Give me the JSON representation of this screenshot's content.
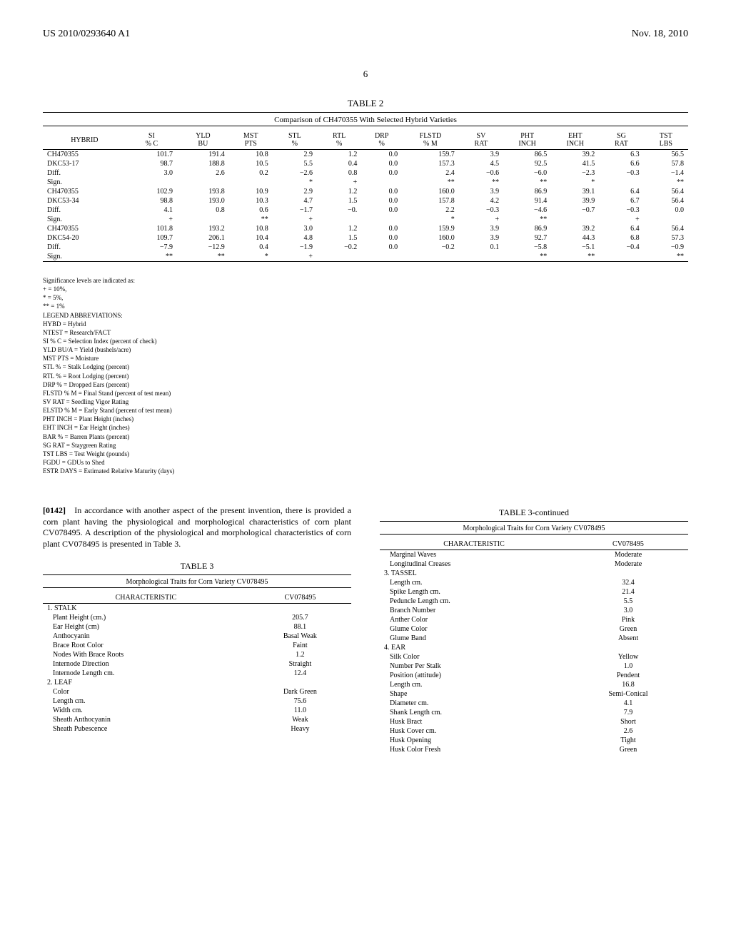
{
  "header": {
    "left": "US 2010/0293640 A1",
    "right": "Nov. 18, 2010"
  },
  "page_number": "6",
  "table2": {
    "label": "TABLE 2",
    "caption": "Comparison of CH470355 With Selected Hybrid Varieties",
    "columns": [
      "HYBRID",
      "SI\n% C",
      "YLD\nBU",
      "MST\nPTS",
      "STL\n%",
      "RTL\n%",
      "DRP\n%",
      "FLSTD\n% M",
      "SV\nRAT",
      "PHT\nINCH",
      "EHT\nINCH",
      "SG\nRAT",
      "TST\nLBS"
    ],
    "rows": [
      [
        "CH470355",
        "101.7",
        "191.4",
        "10.8",
        "2.9",
        "1.2",
        "0.0",
        "159.7",
        "3.9",
        "86.5",
        "39.2",
        "6.3",
        "56.5"
      ],
      [
        "DKC53-17",
        "98.7",
        "188.8",
        "10.5",
        "5.5",
        "0.4",
        "0.0",
        "157.3",
        "4.5",
        "92.5",
        "41.5",
        "6.6",
        "57.8"
      ],
      [
        "Diff.",
        "3.0",
        "2.6",
        "0.2",
        "−2.6",
        "0.8",
        "0.0",
        "2.4",
        "−0.6",
        "−6.0",
        "−2.3",
        "−0.3",
        "−1.4"
      ],
      [
        "Sign.",
        "",
        "",
        "",
        "*",
        "+",
        "",
        "**",
        "**",
        "**",
        "*",
        "",
        "**"
      ],
      [
        "CH470355",
        "102.9",
        "193.8",
        "10.9",
        "2.9",
        "1.2",
        "0.0",
        "160.0",
        "3.9",
        "86.9",
        "39.1",
        "6.4",
        "56.4"
      ],
      [
        "DKC53-34",
        "98.8",
        "193.0",
        "10.3",
        "4.7",
        "1.5",
        "0.0",
        "157.8",
        "4.2",
        "91.4",
        "39.9",
        "6.7",
        "56.4"
      ],
      [
        "Diff.",
        "4.1",
        "0.8",
        "0.6",
        "−1.7",
        "−0.",
        "0.0",
        "2.2",
        "−0.3",
        "−4.6",
        "−0.7",
        "−0.3",
        "0.0"
      ],
      [
        "Sign.",
        "+",
        "",
        "**",
        "+",
        "",
        "",
        "*",
        "+",
        "**",
        "",
        "+",
        ""
      ],
      [
        "CH470355",
        "101.8",
        "193.2",
        "10.8",
        "3.0",
        "1.2",
        "0.0",
        "159.9",
        "3.9",
        "86.9",
        "39.2",
        "6.4",
        "56.4"
      ],
      [
        "DKC54-20",
        "109.7",
        "206.1",
        "10.4",
        "4.8",
        "1.5",
        "0.0",
        "160.0",
        "3.9",
        "92.7",
        "44.3",
        "6.8",
        "57.3"
      ],
      [
        "Diff.",
        "−7.9",
        "−12.9",
        "0.4",
        "−1.9",
        "−0.2",
        "0.0",
        "−0.2",
        "0.1",
        "−5.8",
        "−5.1",
        "−0.4",
        "−0.9"
      ],
      [
        "Sign.",
        "**",
        "**",
        "*",
        "+",
        "",
        "",
        "",
        "",
        "**",
        "**",
        "",
        "**"
      ]
    ]
  },
  "notes": [
    "Significance levels are indicated as:",
    "+ = 10%,",
    "* = 5%,",
    "** = 1%",
    "LEGEND ABBREVIATIONS:",
    "HYBD = Hybrid",
    "NTEST = Research/FACT",
    "SI % C = Selection Index (percent of check)",
    "YLD BU/A = Yield (bushels/acre)",
    "MST PTS = Moisture",
    "STL % = Stalk Lodging (percent)",
    "RTL % = Root Lodging (percent)",
    "DRP % = Dropped Ears (percent)",
    "FLSTD % M = Final Stand (percent of test mean)",
    "SV RAT = Seedling Vigor Rating",
    "ELSTD % M = Early Stand (percent of test mean)",
    "PHT INCH = Plant Height (inches)",
    "EHT INCH = Ear Height (inches)",
    "BAR % = Barren Plants (percent)",
    "SG RAT = Staygreen Rating",
    "TST LBS = Test Weight (pounds)",
    "FGDU = GDUs to Shed",
    "ESTR DAYS = Estimated Relative Maturity (days)"
  ],
  "paragraph": {
    "num": "[0142]",
    "text": "In accordance with another aspect of the present invention, there is provided a corn plant having the physiological and morphological characteristics of corn plant CV078495. A description of the physiological and morphological characteristics of corn plant CV078495 is presented in Table 3."
  },
  "table3": {
    "label": "TABLE 3",
    "cont_label": "TABLE 3-continued",
    "caption": "Morphological Traits for Corn Variety CV078495",
    "col_headers": [
      "CHARACTERISTIC",
      "CV078495"
    ],
    "left_rows": [
      {
        "section": "1. STALK"
      },
      {
        "c": "Plant Height (cm.)",
        "v": "205.7"
      },
      {
        "c": "Ear Height (cm)",
        "v": "88.1"
      },
      {
        "c": "Anthocyanin",
        "v": "Basal Weak"
      },
      {
        "c": "Brace Root Color",
        "v": "Faint"
      },
      {
        "c": "Nodes With Brace Roots",
        "v": "1.2"
      },
      {
        "c": "Internode Direction",
        "v": "Straight"
      },
      {
        "c": "Internode Length cm.",
        "v": "12.4"
      },
      {
        "section": "2. LEAF"
      },
      {
        "c": "Color",
        "v": "Dark Green"
      },
      {
        "c": "Length cm.",
        "v": "75.6"
      },
      {
        "c": "Width cm.",
        "v": "11.0"
      },
      {
        "c": "Sheath Anthocyanin",
        "v": "Weak"
      },
      {
        "c": "Sheath Pubescence",
        "v": "Heavy"
      }
    ],
    "right_rows": [
      {
        "c": "Marginal Waves",
        "v": "Moderate"
      },
      {
        "c": "Longitudinal Creases",
        "v": "Moderate"
      },
      {
        "section": "3. TASSEL"
      },
      {
        "c": "Length cm.",
        "v": "32.4"
      },
      {
        "c": "Spike Length cm.",
        "v": "21.4"
      },
      {
        "c": "Peduncle Length cm.",
        "v": "5.5"
      },
      {
        "c": "Branch Number",
        "v": "3.0"
      },
      {
        "c": "Anther Color",
        "v": "Pink"
      },
      {
        "c": "Glume Color",
        "v": "Green"
      },
      {
        "c": "Glume Band",
        "v": "Absent"
      },
      {
        "section": "4. EAR"
      },
      {
        "c": "Silk Color",
        "v": "Yellow"
      },
      {
        "c": "Number Per Stalk",
        "v": "1.0"
      },
      {
        "c": "Position (attitude)",
        "v": "Pendent"
      },
      {
        "c": "Length cm.",
        "v": "16.8"
      },
      {
        "c": "Shape",
        "v": "Semi-Conical"
      },
      {
        "c": "Diameter cm.",
        "v": "4.1"
      },
      {
        "c": "Shank Length cm.",
        "v": "7.9"
      },
      {
        "c": "Husk Bract",
        "v": "Short"
      },
      {
        "c": "Husk Cover cm.",
        "v": "2.6"
      },
      {
        "c": "Husk Opening",
        "v": "Tight"
      },
      {
        "c": "Husk Color Fresh",
        "v": "Green"
      }
    ]
  }
}
